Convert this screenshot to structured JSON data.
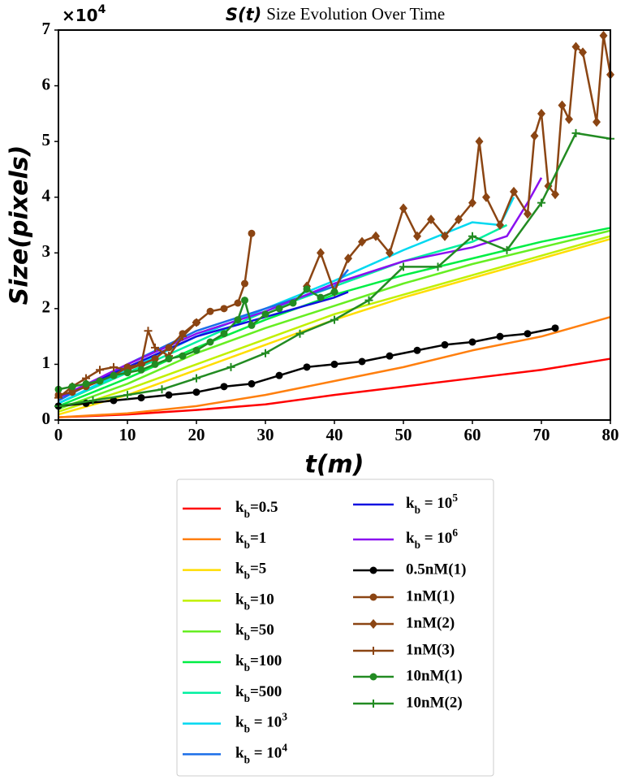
{
  "chart_data": {
    "type": "line",
    "title_symbol": "S(t)",
    "title": "Size Evolution Over Time",
    "x_label": "t(m)",
    "y_label": "Size(pixels)",
    "y_multiplier": "×10^4",
    "xlim": [
      0,
      80
    ],
    "xticks": [
      0,
      10,
      20,
      30,
      40,
      50,
      60,
      70,
      80
    ],
    "ylim": [
      0,
      7
    ],
    "yticks": [
      0,
      1,
      2,
      3,
      4,
      5,
      6,
      7
    ],
    "series": [
      {
        "name": "k_b=0.5",
        "color": "#ff0000",
        "x": [
          0,
          10,
          20,
          30,
          40,
          50,
          60,
          70,
          80
        ],
        "values": [
          0.05,
          0.1,
          0.18,
          0.28,
          0.45,
          0.6,
          0.75,
          0.9,
          1.1
        ]
      },
      {
        "name": "k_b=1",
        "color": "#ff7f0e",
        "x": [
          0,
          10,
          20,
          30,
          40,
          50,
          60,
          70,
          80
        ],
        "values": [
          0.05,
          0.12,
          0.25,
          0.45,
          0.7,
          0.95,
          1.25,
          1.5,
          1.85
        ]
      },
      {
        "name": "k_b=5",
        "color": "#ffdd00",
        "x": [
          0,
          10,
          20,
          30,
          40,
          50,
          60,
          70,
          80
        ],
        "values": [
          0.1,
          0.45,
          0.9,
          1.35,
          1.8,
          2.2,
          2.55,
          2.9,
          3.25
        ]
      },
      {
        "name": "k_b=10",
        "color": "#c0f000",
        "x": [
          0,
          10,
          20,
          30,
          40,
          50,
          60,
          70,
          80
        ],
        "values": [
          0.15,
          0.55,
          1.0,
          1.45,
          1.9,
          2.25,
          2.6,
          2.95,
          3.3
        ]
      },
      {
        "name": "k_b=50",
        "color": "#66ee22",
        "x": [
          0,
          10,
          20,
          30,
          40,
          50,
          60,
          70,
          80
        ],
        "values": [
          0.2,
          0.65,
          1.2,
          1.65,
          2.05,
          2.45,
          2.8,
          3.1,
          3.4
        ]
      },
      {
        "name": "k_b=100",
        "color": "#00ee44",
        "x": [
          0,
          10,
          20,
          30,
          40,
          50,
          60,
          70,
          80
        ],
        "values": [
          0.25,
          0.75,
          1.3,
          1.8,
          2.25,
          2.6,
          2.9,
          3.2,
          3.45
        ]
      },
      {
        "name": "k_b=500",
        "color": "#00f0a0",
        "x": [
          0,
          10,
          20,
          30,
          40,
          50,
          60,
          65
        ],
        "values": [
          0.3,
          0.85,
          1.4,
          1.95,
          2.4,
          2.85,
          3.2,
          3.5
        ]
      },
      {
        "name": "k_b = 10^3",
        "color": "#00d8f0",
        "x": [
          0,
          10,
          20,
          30,
          40,
          50,
          60,
          64,
          66
        ],
        "values": [
          0.3,
          0.9,
          1.5,
          2.0,
          2.5,
          3.05,
          3.55,
          3.5,
          4.0
        ]
      },
      {
        "name": "k_b = 10^4",
        "color": "#1a6ee8",
        "x": [
          0,
          10,
          20,
          30,
          40,
          42
        ],
        "values": [
          0.35,
          1.0,
          1.6,
          2.0,
          2.4,
          2.7
        ]
      },
      {
        "name": "k_b = 10^5",
        "color": "#1010e0",
        "x": [
          0,
          10,
          20,
          30,
          40,
          42
        ],
        "values": [
          0.4,
          0.95,
          1.5,
          1.85,
          2.2,
          2.3
        ]
      },
      {
        "name": "k_b = 10^6",
        "color": "#8a10f0",
        "x": [
          0,
          10,
          20,
          30,
          40,
          50,
          60,
          65,
          68,
          70
        ],
        "values": [
          0.4,
          1.0,
          1.55,
          1.95,
          2.45,
          2.85,
          3.1,
          3.3,
          3.9,
          4.35
        ]
      },
      {
        "name": "0.5nM(1)",
        "color": "#000000",
        "marker": "o",
        "x": [
          0,
          4,
          8,
          12,
          16,
          20,
          24,
          28,
          32,
          36,
          40,
          44,
          48,
          52,
          56,
          60,
          64,
          68,
          72
        ],
        "values": [
          0.25,
          0.3,
          0.35,
          0.4,
          0.45,
          0.5,
          0.6,
          0.65,
          0.8,
          0.95,
          1.0,
          1.05,
          1.15,
          1.25,
          1.35,
          1.4,
          1.5,
          1.55,
          1.65
        ]
      },
      {
        "name": "1nM(1)",
        "color": "#8b4513",
        "marker": "o",
        "x": [
          0,
          2,
          4,
          6,
          8,
          10,
          12,
          14,
          16,
          18,
          20,
          22,
          24,
          26,
          27,
          28
        ],
        "values": [
          0.45,
          0.5,
          0.6,
          0.7,
          0.8,
          0.95,
          1.0,
          1.1,
          1.3,
          1.55,
          1.75,
          1.95,
          2.0,
          2.1,
          2.45,
          3.35
        ]
      },
      {
        "name": "1nM(2)",
        "color": "#8b4513",
        "marker": "D",
        "x": [
          36,
          38,
          40,
          42,
          44,
          46,
          48,
          50,
          52,
          54,
          56,
          58,
          60,
          61,
          62,
          64,
          66,
          68,
          69,
          70,
          71,
          72,
          73,
          74,
          75,
          76,
          78,
          79,
          80
        ],
        "values": [
          2.4,
          3.0,
          2.3,
          2.9,
          3.2,
          3.3,
          3.0,
          3.8,
          3.3,
          3.6,
          3.3,
          3.6,
          3.9,
          5.0,
          4.0,
          3.5,
          4.1,
          3.7,
          5.1,
          5.5,
          4.2,
          4.05,
          5.65,
          5.4,
          6.7,
          6.6,
          5.35,
          6.9,
          6.2
        ]
      },
      {
        "name": "1nM(3)",
        "color": "#8b4513",
        "marker": "+",
        "x": [
          0,
          2,
          4,
          6,
          8,
          10,
          12,
          13,
          14,
          16,
          18,
          20
        ],
        "values": [
          0.4,
          0.6,
          0.75,
          0.9,
          0.95,
          0.9,
          1.0,
          1.6,
          1.3,
          1.15,
          1.5,
          1.75
        ]
      },
      {
        "name": "10nM(1)",
        "color": "#228b22",
        "marker": "o",
        "x": [
          0,
          2,
          4,
          6,
          8,
          10,
          12,
          14,
          16,
          18,
          20,
          22,
          24,
          26,
          27,
          28,
          30,
          32,
          34,
          36,
          38,
          40
        ],
        "values": [
          0.55,
          0.6,
          0.65,
          0.7,
          0.8,
          0.85,
          0.9,
          1.0,
          1.1,
          1.15,
          1.25,
          1.4,
          1.55,
          1.8,
          2.15,
          1.7,
          1.9,
          2.0,
          2.1,
          2.35,
          2.2,
          2.3
        ]
      },
      {
        "name": "10nM(2)",
        "color": "#228b22",
        "marker": "+",
        "x": [
          0,
          5,
          10,
          15,
          20,
          25,
          30,
          35,
          40,
          45,
          50,
          55,
          60,
          65,
          70,
          75,
          80
        ],
        "values": [
          0.25,
          0.35,
          0.45,
          0.55,
          0.75,
          0.95,
          1.2,
          1.55,
          1.8,
          2.15,
          2.75,
          2.75,
          3.3,
          3.05,
          3.9,
          5.15,
          5.05
        ]
      }
    ]
  }
}
